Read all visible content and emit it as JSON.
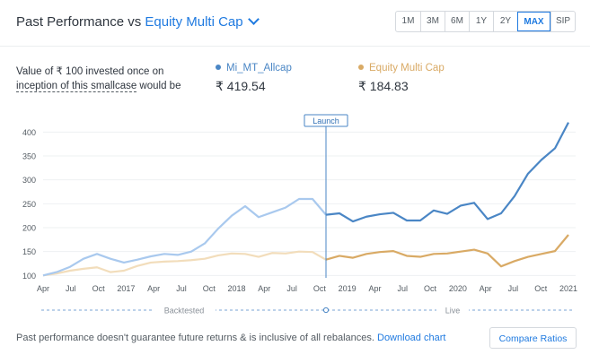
{
  "header": {
    "title_prefix": "Past Performance vs",
    "compare_selection": "Equity Multi Cap",
    "ranges": [
      {
        "label": "1M",
        "active": false
      },
      {
        "label": "3M",
        "active": false
      },
      {
        "label": "6M",
        "active": false
      },
      {
        "label": "1Y",
        "active": false
      },
      {
        "label": "2Y",
        "active": false
      },
      {
        "label": "MAX",
        "active": true
      },
      {
        "label": "SIP",
        "active": false
      }
    ]
  },
  "info": {
    "line1": "Value of ₹ 100 invested once on",
    "line2_link": "inception of this smallcase",
    "line2_rest": " would be"
  },
  "series_summary": [
    {
      "name": "Mi_MT_Allcap",
      "value": "₹ 419.54",
      "color": "#4a86c5"
    },
    {
      "name": "Equity Multi Cap",
      "value": "₹ 184.83",
      "color": "#d9aa65"
    }
  ],
  "chart_data": {
    "type": "line",
    "x_tick_labels": [
      "Apr",
      "Jul",
      "Oct",
      "2017",
      "Apr",
      "Jul",
      "Oct",
      "2018",
      "Apr",
      "Jul",
      "Oct",
      "2019",
      "Apr",
      "Jul",
      "Oct",
      "2020",
      "Apr",
      "Jul",
      "Oct",
      "2021"
    ],
    "y_ticks": [
      100,
      150,
      200,
      250,
      300,
      350,
      400
    ],
    "ylim": [
      95,
      425
    ],
    "launch_label": "Launch",
    "launch_index": 21,
    "phase_labels": {
      "before": "Backtested",
      "after": "Live"
    },
    "colors": {
      "primary_backtest": "#a9c9ee",
      "primary_live": "#4a86c5",
      "benchmark_backtest": "#f2ddbb",
      "benchmark_live": "#d9aa65",
      "launch_line": "#4a86c5"
    },
    "series": [
      {
        "name": "Mi_MT_Allcap",
        "values": [
          100,
          107,
          118,
          135,
          145,
          135,
          127,
          133,
          140,
          145,
          143,
          150,
          167,
          198,
          225,
          245,
          222,
          232,
          242,
          260,
          260,
          227,
          230,
          213,
          223,
          228,
          231,
          215,
          215,
          236,
          229,
          246,
          252,
          218,
          230,
          266,
          313,
          342,
          366,
          420
        ]
      },
      {
        "name": "Equity Multi Cap",
        "values": [
          100,
          104,
          110,
          114,
          117,
          107,
          110,
          120,
          127,
          129,
          130,
          132,
          135,
          142,
          146,
          145,
          139,
          147,
          146,
          150,
          149,
          133,
          141,
          137,
          145,
          149,
          151,
          141,
          139,
          145,
          146,
          150,
          154,
          146,
          119,
          130,
          139,
          145,
          151,
          185
        ]
      }
    ]
  },
  "footer": {
    "disclaimer": "Past performance doesn't guarantee future returns & is inclusive of all rebalances.",
    "download_link": "Download chart",
    "compare_button": "Compare Ratios"
  }
}
